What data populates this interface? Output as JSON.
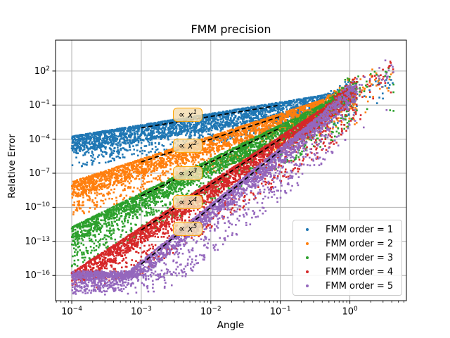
{
  "chart_data": {
    "type": "scatter",
    "title": "FMM precision",
    "xlabel": "Angle",
    "ylabel": "Relative Error",
    "x_scale": "log",
    "y_scale": "log",
    "x_range_log10": [
      -4.233,
      0.813
    ],
    "y_range_log10": [
      -18.22,
      4.72
    ],
    "x_major_ticks_exp": [
      -4,
      -3,
      -2,
      -1,
      0
    ],
    "y_major_ticks_exp": [
      2,
      -1,
      -4,
      -7,
      -10,
      -13,
      -16
    ],
    "grid": true,
    "grid_color": "#b0b0b0",
    "axis_color": "#000000",
    "points_per_series": 3000,
    "random_seed": 1337,
    "noise_floor_log10": -15.9,
    "max_error_log10": 3.75,
    "series": [
      {
        "label": "FMM order = 1",
        "color": "#1f77b4",
        "exponent": 1
      },
      {
        "label": "FMM order = 2",
        "color": "#ff7f0e",
        "exponent": 2
      },
      {
        "label": "FMM order = 3",
        "color": "#2ca02c",
        "exponent": 3
      },
      {
        "label": "FMM order = 4",
        "color": "#d62728",
        "exponent": 4
      },
      {
        "label": "FMM order = 5",
        "color": "#9467bd",
        "exponent": 5
      }
    ],
    "guide_lines": {
      "color": "#000000",
      "style": "dashed",
      "x_span_log10": [
        -3,
        -1
      ],
      "exponents": [
        1,
        2,
        3,
        4,
        5
      ]
    },
    "annotations": [
      {
        "label": "∝ x",
        "exponent": 1,
        "x_log10": -2.33,
        "y_log10": -1.83
      },
      {
        "label": "∝ x",
        "exponent": 2,
        "x_log10": -2.33,
        "y_log10": -4.56
      },
      {
        "label": "∝ x",
        "exponent": 3,
        "x_log10": -2.33,
        "y_log10": -6.97
      },
      {
        "label": "∝ x",
        "exponent": 4,
        "x_log10": -2.33,
        "y_log10": -9.56
      },
      {
        "label": "∝ x",
        "exponent": 5,
        "x_log10": -2.33,
        "y_log10": -11.91
      }
    ],
    "annotation_style": {
      "background": "#f5deb3",
      "border": "#ffa500"
    },
    "legend": {
      "position": "lower right"
    }
  }
}
